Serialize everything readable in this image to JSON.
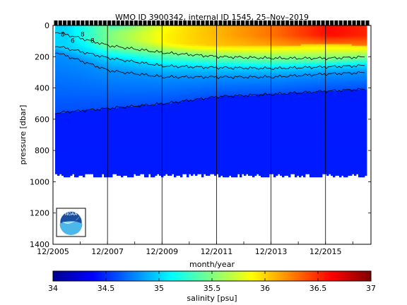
{
  "chart_data": [
    {
      "type": "heatmap",
      "title": "WMO ID 3900342, internal ID 1545, 25–Nov–2019",
      "xlabel": "month/year",
      "ylabel": "pressure [dbar]",
      "x_tick_labels": [
        "12/2005",
        "12/2007",
        "12/2009",
        "12/2011",
        "12/2013",
        "12/2015"
      ],
      "x_range": [
        "12/2005",
        "08/2017"
      ],
      "y_ticks": [
        0,
        200,
        400,
        600,
        800,
        1000,
        1200,
        1400
      ],
      "y_range": [
        0,
        1400
      ],
      "y_reversed": true,
      "grid": "vertical lines at each x tick",
      "profile_max_pressure_dbar": 960,
      "isohalines_depth_dbar": {
        "x": [
          "12/2005",
          "12/2007",
          "12/2009",
          "12/2011",
          "12/2013",
          "12/2015",
          "08/2017"
        ],
        "s34_6": [
          560,
          530,
          500,
          455,
          440,
          420,
          405
        ],
        "s34_8": [
          170,
          290,
          330,
          330,
          330,
          310,
          300
        ],
        "s35_0": [
          130,
          210,
          260,
          270,
          275,
          265,
          255
        ],
        "s35_5": [
          40,
          130,
          175,
          200,
          210,
          210,
          200
        ],
        "s36_0": [
          20,
          80,
          110,
          130,
          130,
          120,
          130
        ]
      },
      "surface_max_salinity": {
        "x": [
          "12/2005",
          "12/2007",
          "12/2009",
          "12/2011",
          "12/2013",
          "12/2015",
          "08/2017"
        ],
        "values": [
          34.9,
          35.5,
          35.9,
          36.1,
          36.3,
          36.6,
          36.5
        ]
      },
      "contour_labels": [
        "8",
        "6",
        "8",
        "8"
      ],
      "logo": "NOAA"
    },
    {
      "type": "colorbar",
      "label": "salinity [psu]",
      "range": [
        34,
        37
      ],
      "tick_labels": [
        "34",
        "34.5",
        "35",
        "35.5",
        "36",
        "36.5",
        "37"
      ],
      "colormap": [
        "#00008f",
        "#0000ff",
        "#0080ff",
        "#00ffff",
        "#80ff80",
        "#ffff00",
        "#ff8000",
        "#ff0000",
        "#800000"
      ]
    }
  ]
}
